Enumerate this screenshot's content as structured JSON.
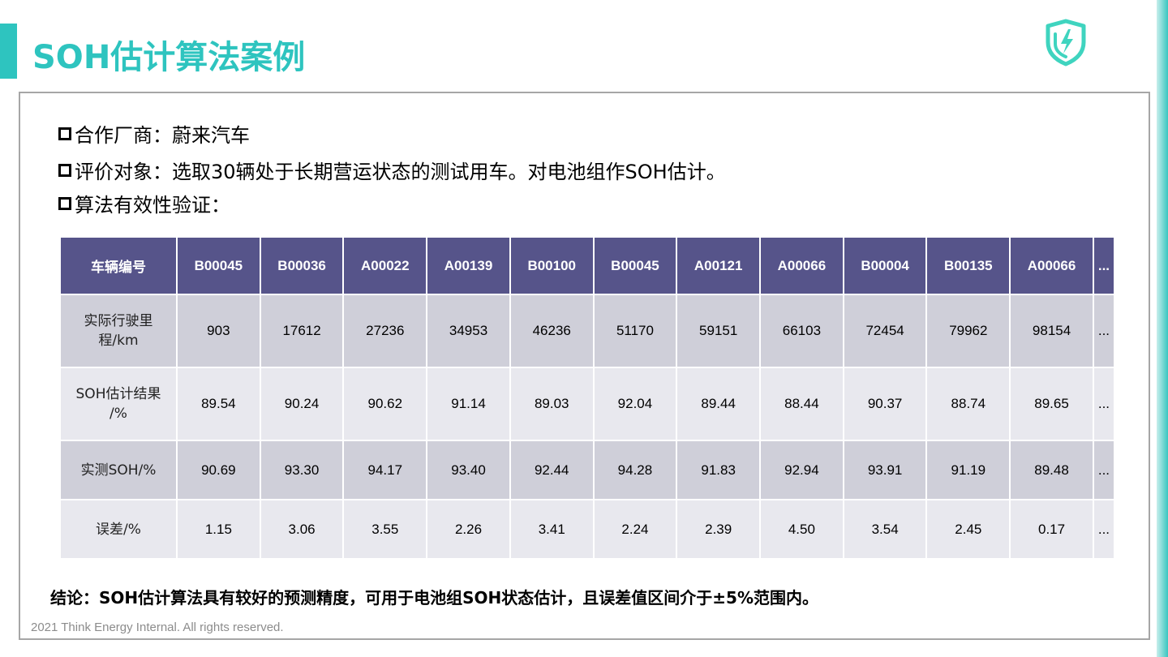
{
  "slide": {
    "title": "SOH估计算法案例",
    "accent_color": "#2ec4bf",
    "logo_icon": "shield-lightning-logo"
  },
  "bullets": [
    "合作厂商：蔚来汽车",
    "评价对象：选取30辆处于长期营运状态的测试用车。对电池组作SOH估计。",
    "算法有效性验证："
  ],
  "table": {
    "header_label": "车辆编号",
    "vehicle_ids": [
      "B00045",
      "B00036",
      "A00022",
      "A00139",
      "B00100",
      "B00045",
      "A00121",
      "A00066",
      "B00004",
      "B00135",
      "A00066",
      "..."
    ],
    "rows": [
      {
        "label_line1": "实际行驶里",
        "label_line2": "程/km",
        "values": [
          "903",
          "17612",
          "27236",
          "34953",
          "46236",
          "51170",
          "59151",
          "66103",
          "72454",
          "79962",
          "98154",
          "..."
        ]
      },
      {
        "label_line1": "SOH估计结果",
        "label_line2": "/%",
        "values": [
          "89.54",
          "90.24",
          "90.62",
          "91.14",
          "89.03",
          "92.04",
          "89.44",
          "88.44",
          "90.37",
          "88.74",
          "89.65",
          "..."
        ]
      },
      {
        "label_line1": "实测SOH/%",
        "label_line2": "",
        "values": [
          "90.69",
          "93.30",
          "94.17",
          "93.40",
          "92.44",
          "94.28",
          "91.83",
          "92.94",
          "93.91",
          "91.19",
          "89.48",
          "..."
        ]
      },
      {
        "label_line1": "误差/%",
        "label_line2": "",
        "values": [
          "1.15",
          "3.06",
          "3.55",
          "2.26",
          "3.41",
          "2.24",
          "2.39",
          "4.50",
          "3.54",
          "2.45",
          "0.17",
          "..."
        ]
      }
    ],
    "header_color": "#56548a"
  },
  "conclusion": "结论：SOH估计算法具有较好的预测精度，可用于电池组SOH状态估计，且误差值区间介于±5%范围内。",
  "footer": "2021 Think Energy Internal. All rights reserved."
}
